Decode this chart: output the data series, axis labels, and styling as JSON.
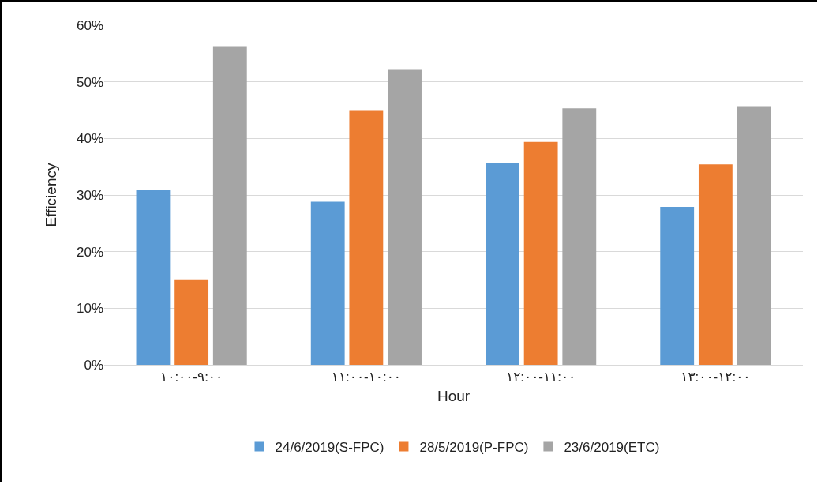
{
  "chart_data": {
    "type": "bar",
    "xlabel": "Hour",
    "ylabel": "Efficiency",
    "categories": [
      "٩:٠٠-١٠:٠٠",
      "١٠:٠٠-١١:٠٠",
      "١١:٠٠-١٢:٠٠",
      "١٢:٠٠-١٣:٠٠"
    ],
    "series": [
      {
        "name": "24/6/2019(S-FPC)",
        "color": "#5b9bd5",
        "values": [
          30.9,
          28.8,
          35.7,
          27.9
        ]
      },
      {
        "name": "28/5/2019(P-FPC)",
        "color": "#ed7d31",
        "values": [
          15.1,
          45.0,
          39.4,
          35.4
        ]
      },
      {
        "name": "23/6/2019(ETC)",
        "color": "#a5a5a5",
        "values": [
          56.3,
          52.1,
          45.3,
          45.7
        ]
      }
    ],
    "ylim": [
      0,
      60
    ],
    "yticks": [
      {
        "value": 0,
        "label": "0%"
      },
      {
        "value": 10,
        "label": "10%"
      },
      {
        "value": 20,
        "label": "20%"
      },
      {
        "value": 30,
        "label": "30%"
      },
      {
        "value": 40,
        "label": "40%"
      },
      {
        "value": 50,
        "label": "50%"
      },
      {
        "value": 60,
        "label": "60%"
      }
    ],
    "grid": "y",
    "legend": "bottom"
  }
}
